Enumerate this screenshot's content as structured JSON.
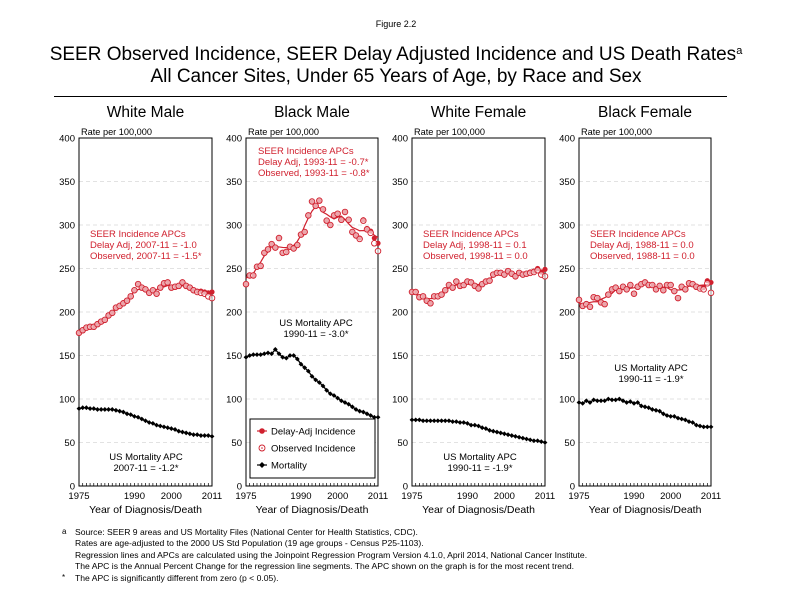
{
  "figure_label": "Figure 2.2",
  "title_line1": "SEER Observed Incidence, SEER Delay Adjusted Incidence and US Death Rates",
  "title_superscript": "a",
  "title_line2": "All Cancer Sites, Under 65 Years of Age, by Race and Sex",
  "legend": {
    "items": [
      {
        "label": "Delay-Adj Incidence",
        "marker": "filled-circle",
        "color": "#d0202e"
      },
      {
        "label": "Observed Incidence",
        "marker": "open-circle",
        "color": "#d0202e"
      },
      {
        "label": "Mortality",
        "marker": "diamond",
        "color": "#000000"
      }
    ]
  },
  "colors": {
    "incidence": "#d0202e",
    "mortality": "#000000",
    "grid": "#d9d9d9"
  },
  "footnotes": [
    {
      "mark": "a",
      "lines": [
        "Source: SEER 9 areas and US Mortality Files (National Center for Health Statistics, CDC).",
        "Rates are age-adjusted to the 2000 US Std Population (19 age groups - Census P25-1103).",
        "Regression lines and APCs are calculated using the Joinpoint Regression Program Version 4.1.0, April 2014, National Cancer Institute.",
        "The APC is the Annual Percent Change for the regression line segments. The APC shown on the graph is for the most recent trend."
      ]
    },
    {
      "mark": "*",
      "lines": [
        "The APC is significantly different from zero (p < 0.05)."
      ]
    }
  ],
  "chart_data": [
    {
      "type": "line",
      "title": "White Male",
      "ylabel": "Rate per 100,000",
      "xlabel": "Year of Diagnosis/Death",
      "xlim": [
        1975,
        2011
      ],
      "ylim": [
        0,
        400
      ],
      "yticks": [
        0,
        50,
        100,
        150,
        200,
        250,
        300,
        350,
        400
      ],
      "xtick_labels": [
        "1975",
        "1990",
        "2000",
        "2011"
      ],
      "grid": true,
      "incidence_annotation": [
        "SEER Incidence APCs",
        "Delay Adj, 2007-11 = -1.0",
        "Observed, 2007-11 = -1.5*"
      ],
      "mortality_annotation": [
        "US Mortality APC",
        "2007-11 = -1.2*"
      ],
      "series": [
        {
          "name": "Delay-Adj Incidence",
          "values": [
            176,
            179,
            182,
            183,
            183,
            186,
            189,
            191,
            196,
            199,
            205,
            207,
            210,
            213,
            218,
            225,
            232,
            228,
            226,
            222,
            225,
            221,
            228,
            233,
            234,
            228,
            229,
            230,
            234,
            230,
            228,
            225,
            224,
            224,
            223,
            222,
            223
          ]
        },
        {
          "name": "Observed Incidence",
          "values": [
            176,
            179,
            182,
            183,
            183,
            186,
            189,
            191,
            196,
            199,
            205,
            207,
            210,
            213,
            218,
            225,
            232,
            228,
            226,
            222,
            225,
            221,
            228,
            233,
            234,
            228,
            229,
            230,
            234,
            230,
            228,
            225,
            223,
            222,
            221,
            218,
            216
          ]
        },
        {
          "name": "Mortality",
          "values": [
            89,
            90,
            90,
            89,
            89,
            88,
            88,
            88,
            88,
            88,
            87,
            86,
            85,
            83,
            82,
            80,
            79,
            77,
            75,
            73,
            72,
            70,
            69,
            68,
            67,
            66,
            65,
            63,
            62,
            61,
            60,
            59,
            59,
            58,
            58,
            58,
            57
          ]
        }
      ]
    },
    {
      "type": "line",
      "title": "Black Male",
      "ylabel": "Rate per 100,000",
      "xlabel": "Year of Diagnosis/Death",
      "xlim": [
        1975,
        2011
      ],
      "ylim": [
        0,
        400
      ],
      "yticks": [
        0,
        50,
        100,
        150,
        200,
        250,
        300,
        350,
        400
      ],
      "xtick_labels": [
        "1975",
        "1990",
        "2000",
        "2011"
      ],
      "grid": true,
      "incidence_annotation": [
        "SEER Incidence APCs",
        "Delay Adj, 1993-11 = -0.7*",
        "Observed, 1993-11 = -0.8*"
      ],
      "mortality_annotation": [
        "US Mortality APC",
        "1990-11 = -3.0*"
      ],
      "series": [
        {
          "name": "Delay-Adj Incidence",
          "values": [
            232,
            242,
            242,
            252,
            253,
            268,
            272,
            278,
            274,
            285,
            268,
            269,
            275,
            273,
            277,
            289,
            292,
            311,
            327,
            322,
            328,
            318,
            305,
            300,
            311,
            313,
            306,
            315,
            306,
            292,
            288,
            285,
            306,
            296,
            293,
            285,
            279
          ]
        },
        {
          "name": "Observed Incidence",
          "values": [
            232,
            242,
            242,
            252,
            253,
            268,
            272,
            278,
            274,
            285,
            268,
            269,
            275,
            273,
            277,
            289,
            292,
            311,
            327,
            322,
            328,
            318,
            305,
            300,
            311,
            313,
            306,
            315,
            306,
            292,
            288,
            284,
            305,
            295,
            291,
            279,
            270
          ]
        },
        {
          "name": "Mortality",
          "values": [
            148,
            150,
            151,
            151,
            151,
            152,
            153,
            152,
            157,
            152,
            148,
            147,
            150,
            150,
            146,
            140,
            136,
            132,
            126,
            122,
            119,
            115,
            110,
            106,
            104,
            101,
            98,
            96,
            94,
            91,
            88,
            86,
            85,
            83,
            81,
            79,
            79
          ]
        }
      ]
    },
    {
      "type": "line",
      "title": "White Female",
      "ylabel": "Rate per 100,000",
      "xlabel": "Year of Diagnosis/Death",
      "xlim": [
        1975,
        2011
      ],
      "ylim": [
        0,
        400
      ],
      "yticks": [
        0,
        50,
        100,
        150,
        200,
        250,
        300,
        350,
        400
      ],
      "xtick_labels": [
        "1975",
        "1990",
        "2000",
        "2011"
      ],
      "grid": true,
      "incidence_annotation": [
        "SEER Incidence APCs",
        "Delay Adj, 1998-11 = 0.1",
        "Observed, 1998-11 = 0.0"
      ],
      "mortality_annotation": [
        "US Mortality APC",
        "1990-11 = -1.9*"
      ],
      "series": [
        {
          "name": "Delay-Adj Incidence",
          "values": [
            223,
            223,
            217,
            218,
            213,
            210,
            218,
            218,
            220,
            225,
            231,
            228,
            235,
            230,
            231,
            235,
            234,
            230,
            227,
            232,
            235,
            236,
            243,
            245,
            245,
            243,
            247,
            244,
            241,
            245,
            243,
            244,
            246,
            247,
            250,
            246,
            249
          ]
        },
        {
          "name": "Observed Incidence",
          "values": [
            223,
            223,
            217,
            218,
            213,
            210,
            218,
            218,
            220,
            225,
            231,
            228,
            235,
            230,
            231,
            235,
            234,
            230,
            227,
            232,
            235,
            236,
            243,
            245,
            245,
            243,
            247,
            244,
            241,
            245,
            243,
            244,
            245,
            246,
            248,
            243,
            241
          ]
        },
        {
          "name": "Mortality",
          "values": [
            76,
            76,
            76,
            75,
            75,
            75,
            75,
            75,
            75,
            75,
            75,
            74,
            74,
            73,
            73,
            72,
            70,
            70,
            69,
            67,
            66,
            64,
            63,
            62,
            61,
            60,
            59,
            58,
            57,
            56,
            55,
            54,
            53,
            52,
            52,
            51,
            50
          ]
        }
      ]
    },
    {
      "type": "line",
      "title": "Black Female",
      "ylabel": "Rate per 100,000",
      "xlabel": "Year of Diagnosis/Death",
      "xlim": [
        1975,
        2011
      ],
      "ylim": [
        0,
        400
      ],
      "yticks": [
        0,
        50,
        100,
        150,
        200,
        250,
        300,
        350,
        400
      ],
      "xtick_labels": [
        "1975",
        "1990",
        "2000",
        "2011"
      ],
      "grid": true,
      "incidence_annotation": [
        "SEER Incidence APCs",
        "Delay Adj, 1988-11 = 0.0",
        "Observed, 1988-11 = 0.0"
      ],
      "mortality_annotation": [
        "US Mortality APC",
        "1990-11 = -1.9*"
      ],
      "series": [
        {
          "name": "Delay-Adj Incidence",
          "values": [
            214,
            207,
            209,
            206,
            217,
            216,
            211,
            209,
            220,
            226,
            228,
            224,
            229,
            226,
            231,
            221,
            229,
            232,
            234,
            231,
            231,
            226,
            230,
            225,
            231,
            231,
            224,
            216,
            229,
            226,
            233,
            232,
            229,
            228,
            228,
            236,
            234
          ]
        },
        {
          "name": "Observed Incidence",
          "values": [
            214,
            207,
            209,
            206,
            217,
            216,
            211,
            209,
            220,
            226,
            228,
            224,
            229,
            226,
            231,
            221,
            229,
            232,
            234,
            231,
            231,
            226,
            230,
            225,
            231,
            231,
            224,
            216,
            229,
            226,
            233,
            232,
            229,
            227,
            226,
            233,
            222
          ]
        },
        {
          "name": "Mortality",
          "values": [
            96,
            95,
            98,
            96,
            99,
            98,
            98,
            98,
            100,
            99,
            99,
            100,
            98,
            96,
            97,
            95,
            96,
            92,
            91,
            90,
            88,
            87,
            86,
            83,
            81,
            80,
            80,
            78,
            77,
            76,
            74,
            73,
            70,
            69,
            68,
            68,
            68
          ]
        }
      ]
    }
  ]
}
